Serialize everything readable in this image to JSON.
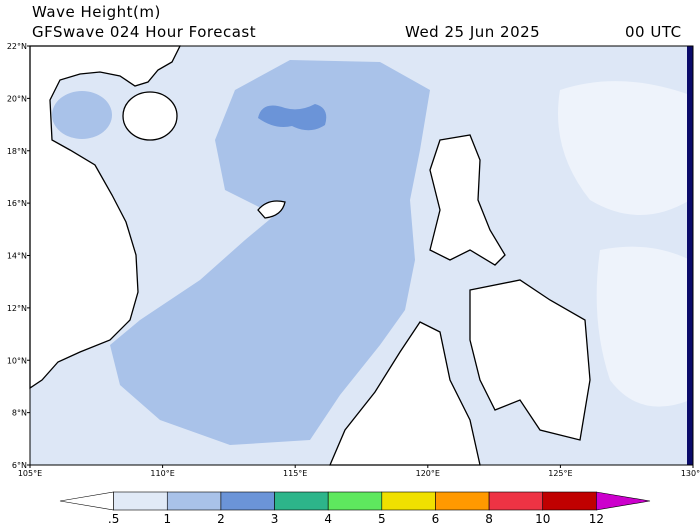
{
  "header": {
    "title": "Wave Height(m)",
    "subtitle": "GFSwave 024 Hour Forecast",
    "date": "Wed 25 Jun 2025",
    "time": "00 UTC"
  },
  "map": {
    "lat_labels": [
      "22°N",
      "20°N",
      "18°N",
      "16°N",
      "14°N",
      "12°N",
      "10°N",
      "8°N",
      "6°N"
    ],
    "lon_labels": [
      "105°E",
      "110°E",
      "115°E",
      "120°E",
      "125°E",
      "130°E"
    ]
  },
  "colorbar": {
    "labels": [
      ".5",
      "1",
      "2",
      "3",
      "4",
      "5",
      "6",
      "8",
      "10",
      "12"
    ],
    "colors": [
      "#ffffff",
      "#e1eaf7",
      "#a9c2e9",
      "#6b94d8",
      "#2db58a",
      "#5ee85e",
      "#f0e000",
      "#ff9900",
      "#ee3344",
      "#c00000",
      "#cc00cc"
    ]
  }
}
